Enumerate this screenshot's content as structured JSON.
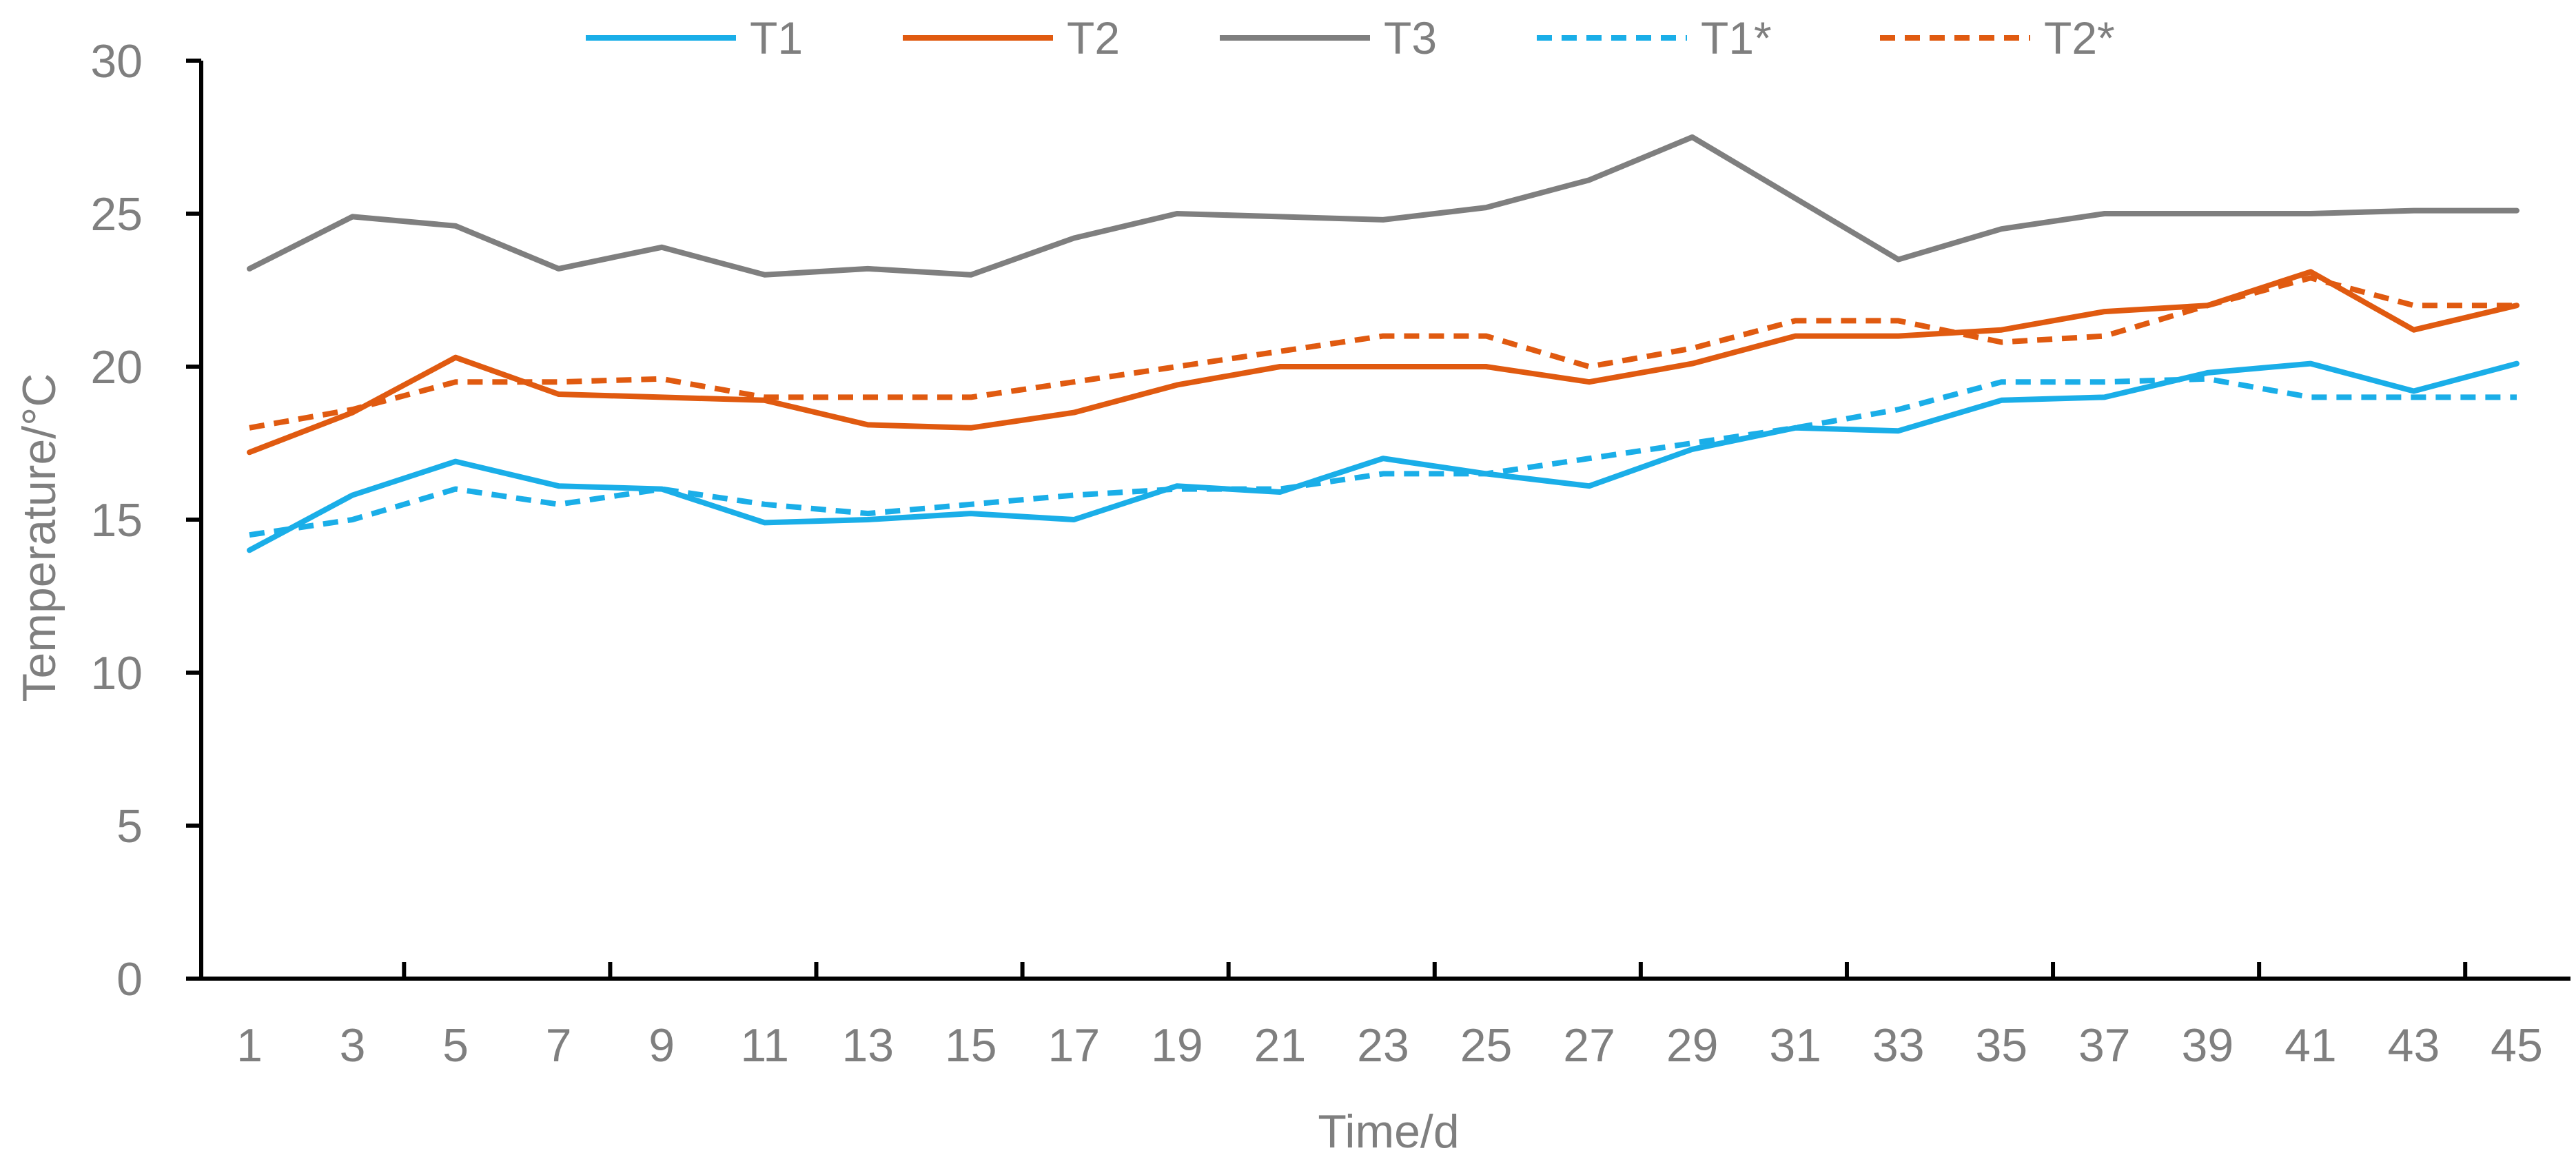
{
  "chart_data": {
    "type": "line",
    "title": "",
    "xlabel": "Time/d",
    "ylabel": "Temperature/°C",
    "ylim": [
      0,
      30
    ],
    "yticks": [
      0,
      5,
      10,
      15,
      20,
      25,
      30
    ],
    "x": [
      1,
      3,
      5,
      7,
      9,
      11,
      13,
      15,
      17,
      19,
      21,
      23,
      25,
      27,
      29,
      31,
      33,
      35,
      37,
      39,
      41,
      43,
      45
    ],
    "legend_position": "top",
    "series": [
      {
        "name": "T1",
        "color": "#1aaee8",
        "dashed": false,
        "values": [
          14.0,
          15.8,
          16.9,
          16.1,
          16.0,
          14.9,
          15.0,
          15.2,
          15.0,
          16.1,
          15.9,
          17.0,
          16.5,
          16.1,
          17.3,
          18.0,
          17.9,
          18.9,
          19.0,
          19.8,
          20.1,
          19.2,
          20.1
        ]
      },
      {
        "name": "T2",
        "color": "#e05a10",
        "dashed": false,
        "values": [
          17.2,
          18.5,
          20.3,
          19.1,
          19.0,
          18.9,
          18.1,
          18.0,
          18.5,
          19.4,
          20.0,
          20.0,
          20.0,
          19.5,
          20.1,
          21.0,
          21.0,
          21.2,
          21.8,
          22.0,
          23.1,
          21.2,
          22.0
        ]
      },
      {
        "name": "T3",
        "color": "#7f7f7f",
        "dashed": false,
        "values": [
          23.2,
          24.9,
          24.6,
          23.2,
          23.9,
          23.0,
          23.2,
          23.0,
          24.2,
          25.0,
          24.9,
          24.8,
          25.2,
          26.1,
          27.5,
          25.5,
          23.5,
          24.5,
          25.0,
          25.0,
          25.0,
          25.1,
          25.1
        ]
      },
      {
        "name": "T1*",
        "color": "#1aaee8",
        "dashed": true,
        "values": [
          14.5,
          15.0,
          16.0,
          15.5,
          16.0,
          15.5,
          15.2,
          15.5,
          15.8,
          16.0,
          16.0,
          16.5,
          16.5,
          17.0,
          17.5,
          18.0,
          18.6,
          19.5,
          19.5,
          19.6,
          19.0,
          19.0,
          19.0
        ]
      },
      {
        "name": "T2*",
        "color": "#e05a10",
        "dashed": true,
        "values": [
          18.0,
          18.6,
          19.5,
          19.5,
          19.6,
          19.0,
          19.0,
          19.0,
          19.5,
          20.0,
          20.5,
          21.0,
          21.0,
          20.0,
          20.6,
          21.5,
          21.5,
          20.8,
          21.0,
          22.0,
          22.9,
          22.0,
          22.0
        ]
      }
    ]
  }
}
